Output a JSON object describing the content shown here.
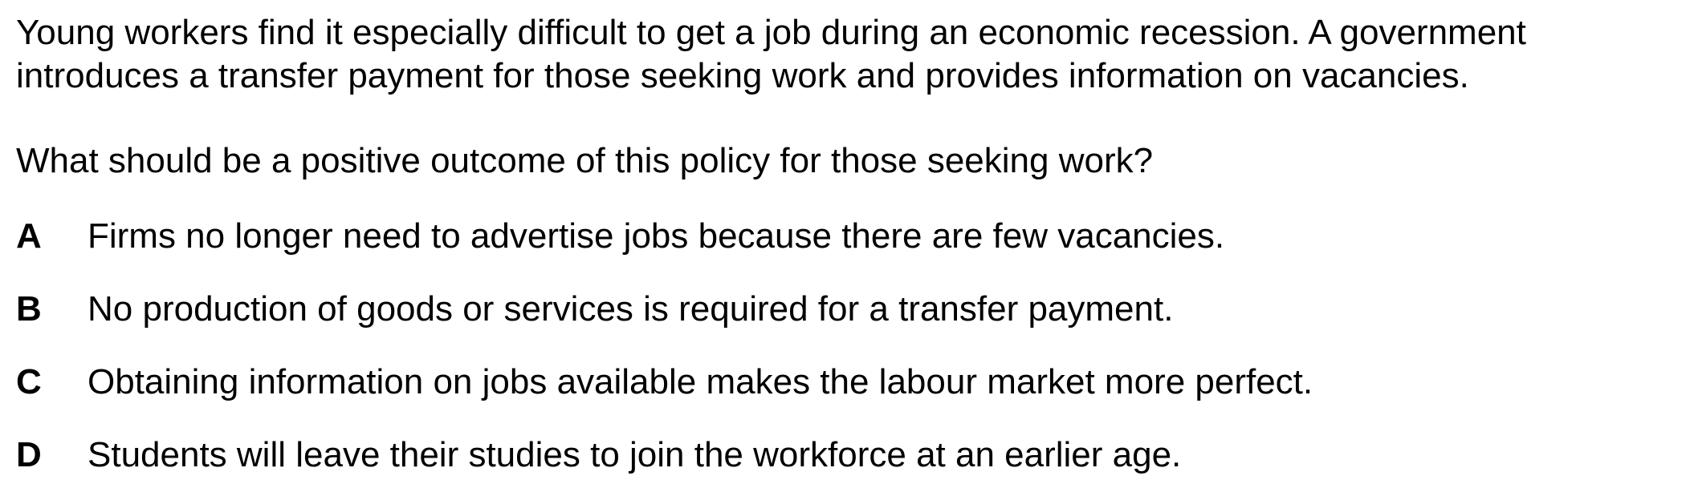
{
  "stem": {
    "line1": "Young workers find it especially difficult to get a job during an economic recession. A government",
    "line2": "introduces a transfer payment for those seeking work and provides information on vacancies."
  },
  "question": "What should be a positive outcome of this policy for those seeking work?",
  "options": [
    {
      "letter": "A",
      "text": "Firms no longer need to advertise jobs because there are few vacancies."
    },
    {
      "letter": "B",
      "text": "No production of goods or services is required for a transfer payment."
    },
    {
      "letter": "C",
      "text": "Obtaining information on jobs available makes the labour market more perfect."
    },
    {
      "letter": "D",
      "text": "Students will leave their studies to join the workforce at an earlier age."
    }
  ]
}
